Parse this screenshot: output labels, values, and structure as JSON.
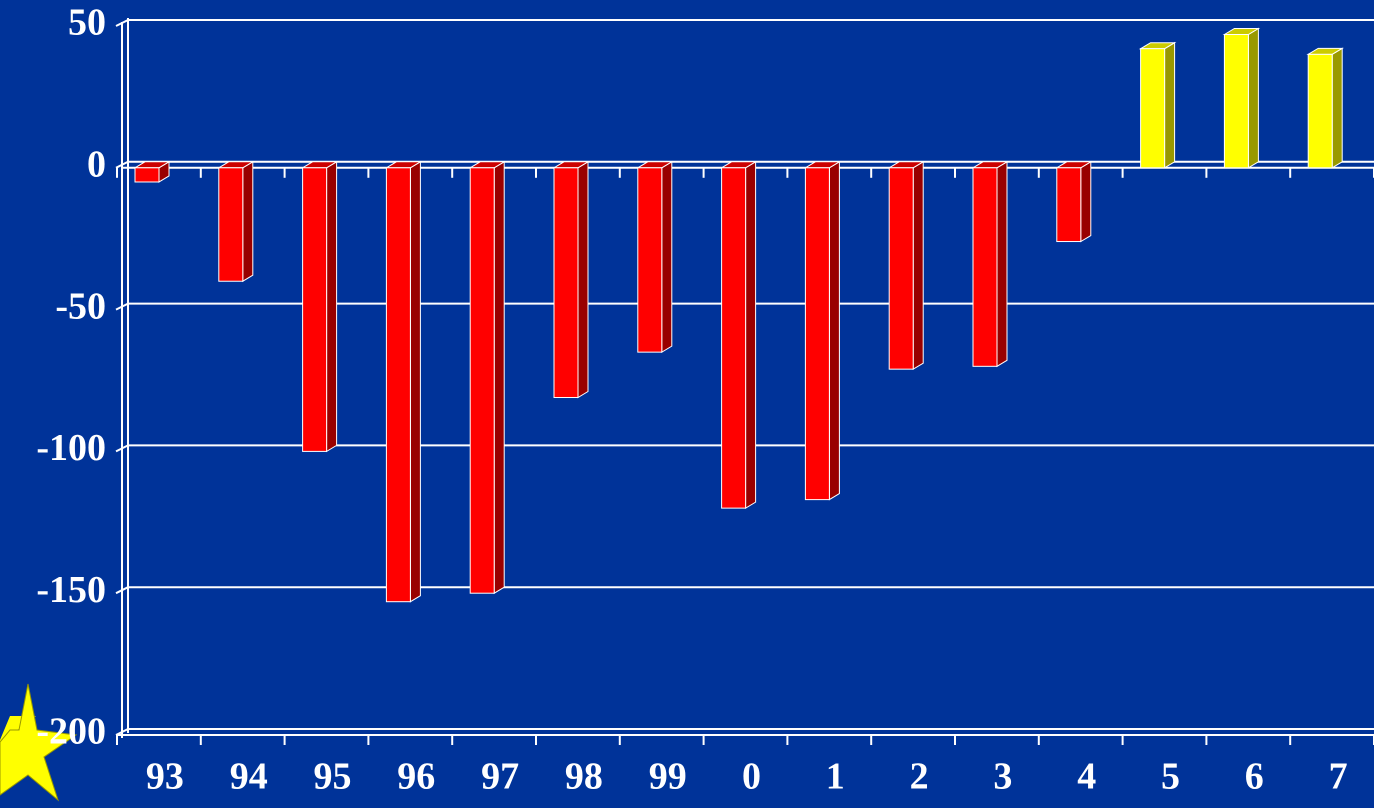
{
  "chart_data": {
    "type": "bar",
    "categories": [
      "93",
      "94",
      "95",
      "96",
      "97",
      "98",
      "99",
      "0",
      "1",
      "2",
      "3",
      "4",
      "5",
      "6",
      "7"
    ],
    "values": [
      -5,
      -40,
      -100,
      -153,
      -150,
      -81,
      -65,
      -120,
      -117,
      -71,
      -70,
      -26,
      42,
      47,
      40
    ],
    "colors": [
      "#ff0000",
      "#ff0000",
      "#ff0000",
      "#ff0000",
      "#ff0000",
      "#ff0000",
      "#ff0000",
      "#ff0000",
      "#ff0000",
      "#ff0000",
      "#ff0000",
      "#ff0000",
      "#ffff00",
      "#ffff00",
      "#ffff00"
    ],
    "ylim": [
      -200,
      50
    ],
    "yticks": [
      -200,
      -150,
      -100,
      -50,
      0,
      50
    ],
    "grid": true
  }
}
